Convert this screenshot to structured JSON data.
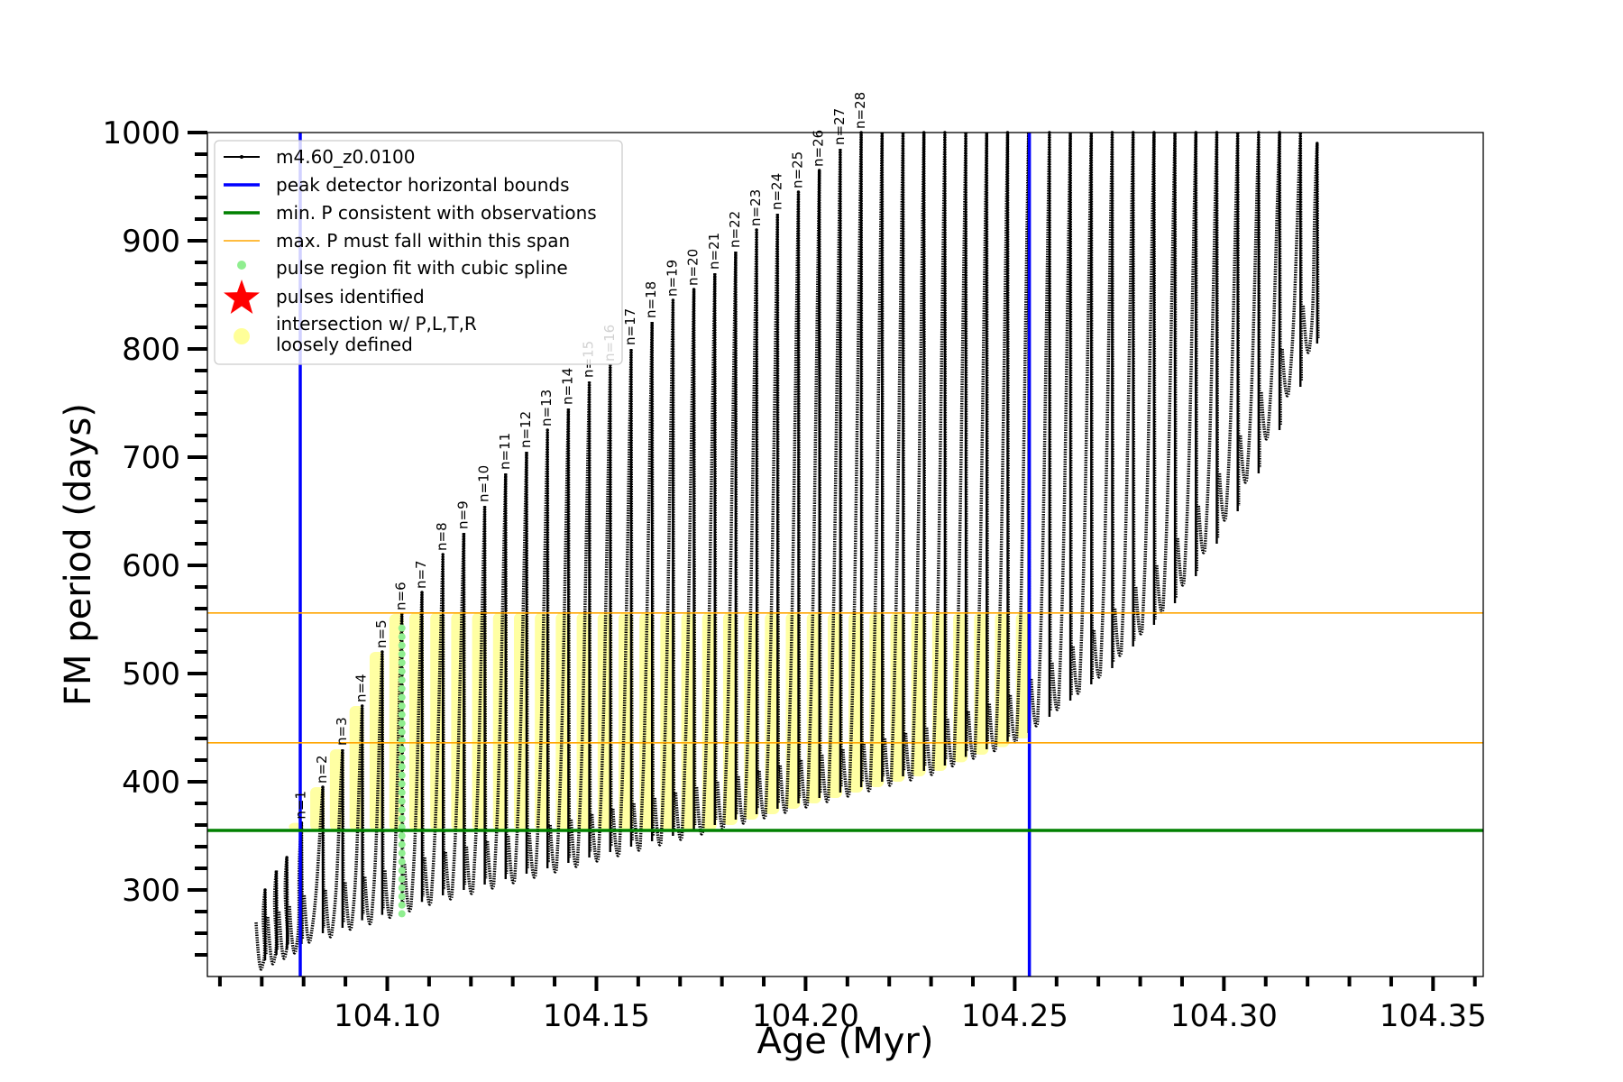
{
  "chart_data": {
    "type": "line",
    "xlabel": "Age (Myr)",
    "ylabel": "FM period (days)",
    "xlim": [
      104.057,
      104.362
    ],
    "ylim": [
      220,
      1000
    ],
    "x_ticks": [
      "104.10",
      "104.15",
      "104.20",
      "104.25",
      "104.30",
      "104.35"
    ],
    "y_ticks": [
      "300",
      "400",
      "500",
      "600",
      "700",
      "800",
      "900",
      "1000"
    ],
    "grid": false,
    "legend_position": "top-left",
    "legend": [
      {
        "key": "model",
        "label": "m4.60_z0.0100",
        "color": "#000000",
        "marker": "line-dot"
      },
      {
        "key": "bounds",
        "label": "peak detector horizontal bounds",
        "color": "#0000ff",
        "marker": "line"
      },
      {
        "key": "minp",
        "label": "min. P consistent with observations",
        "color": "#008000",
        "marker": "line"
      },
      {
        "key": "maxp",
        "label": "max. P must fall within this span",
        "color": "#ffa500",
        "marker": "thin-line"
      },
      {
        "key": "spline",
        "label": "pulse region fit with cubic spline",
        "color": "#90ee90",
        "marker": "dot"
      },
      {
        "key": "pulses",
        "label": "pulses identified",
        "color": "#ff0000",
        "marker": "star"
      },
      {
        "key": "intersect",
        "label": "intersection w/ P,L,T,R",
        "label2": "loosely defined",
        "color": "#ffff99",
        "marker": "circle"
      }
    ],
    "series": [
      {
        "name": "m4.60_z0.0100",
        "style": "pulse sawtooth (dense points)",
        "pulses": [
          {
            "age": 104.0708,
            "min": 230,
            "max": 300
          },
          {
            "age": 104.0735,
            "min": 235,
            "max": 318
          },
          {
            "age": 104.076,
            "min": 240,
            "max": 330
          },
          {
            "age": 104.0795,
            "min": 245,
            "max": 362,
            "label": "n=1"
          },
          {
            "age": 104.0846,
            "min": 255,
            "max": 395,
            "label": "n=2"
          },
          {
            "age": 104.0893,
            "min": 260,
            "max": 430,
            "label": "n=3"
          },
          {
            "age": 104.094,
            "min": 267,
            "max": 470,
            "label": "n=4"
          },
          {
            "age": 104.0988,
            "min": 272,
            "max": 520,
            "label": "n=5"
          },
          {
            "age": 104.1035,
            "min": 278,
            "max": 555,
            "label": "n=6"
          },
          {
            "age": 104.1083,
            "min": 284,
            "max": 575,
            "label": "n=7"
          },
          {
            "age": 104.1133,
            "min": 290,
            "max": 610,
            "label": "n=8"
          },
          {
            "age": 104.1183,
            "min": 295,
            "max": 630,
            "label": "n=9"
          },
          {
            "age": 104.1233,
            "min": 300,
            "max": 655,
            "label": "n=10"
          },
          {
            "age": 104.1283,
            "min": 305,
            "max": 685,
            "label": "n=11"
          },
          {
            "age": 104.1333,
            "min": 310,
            "max": 705,
            "label": "n=12"
          },
          {
            "age": 104.1383,
            "min": 315,
            "max": 725,
            "label": "n=13"
          },
          {
            "age": 104.1433,
            "min": 320,
            "max": 745,
            "label": "n=14"
          },
          {
            "age": 104.1483,
            "min": 325,
            "max": 770,
            "label": "n=15"
          },
          {
            "age": 104.1533,
            "min": 330,
            "max": 785,
            "label": "n=16"
          },
          {
            "age": 104.1583,
            "min": 335,
            "max": 800,
            "label": "n=17"
          },
          {
            "age": 104.1633,
            "min": 340,
            "max": 825,
            "label": "n=18"
          },
          {
            "age": 104.1683,
            "min": 345,
            "max": 845,
            "label": "n=19"
          },
          {
            "age": 104.1733,
            "min": 350,
            "max": 855,
            "label": "n=20"
          },
          {
            "age": 104.1783,
            "min": 355,
            "max": 870,
            "label": "n=21"
          },
          {
            "age": 104.1833,
            "min": 360,
            "max": 890,
            "label": "n=22"
          },
          {
            "age": 104.1883,
            "min": 365,
            "max": 910,
            "label": "n=23"
          },
          {
            "age": 104.1933,
            "min": 370,
            "max": 925,
            "label": "n=24"
          },
          {
            "age": 104.1983,
            "min": 375,
            "max": 945,
            "label": "n=25"
          },
          {
            "age": 104.2033,
            "min": 380,
            "max": 965,
            "label": "n=26"
          },
          {
            "age": 104.2083,
            "min": 385,
            "max": 985,
            "label": "n=27"
          },
          {
            "age": 104.2133,
            "min": 390,
            "max": 1000,
            "label": "n=28"
          },
          {
            "age": 104.2183,
            "min": 395,
            "max": 1000
          },
          {
            "age": 104.2233,
            "min": 400,
            "max": 1000
          },
          {
            "age": 104.2283,
            "min": 405,
            "max": 1000
          },
          {
            "age": 104.2333,
            "min": 410,
            "max": 1000
          },
          {
            "age": 104.2383,
            "min": 418,
            "max": 1000
          },
          {
            "age": 104.2433,
            "min": 425,
            "max": 1000
          },
          {
            "age": 104.2483,
            "min": 432,
            "max": 1000
          },
          {
            "age": 104.2533,
            "min": 440,
            "max": 1000
          },
          {
            "age": 104.2583,
            "min": 455,
            "max": 1000
          },
          {
            "age": 104.2633,
            "min": 470,
            "max": 1000
          },
          {
            "age": 104.2683,
            "min": 485,
            "max": 1000
          },
          {
            "age": 104.2733,
            "min": 500,
            "max": 1000
          },
          {
            "age": 104.2783,
            "min": 520,
            "max": 1000
          },
          {
            "age": 104.2833,
            "min": 540,
            "max": 1000
          },
          {
            "age": 104.2883,
            "min": 560,
            "max": 1000
          },
          {
            "age": 104.2933,
            "min": 585,
            "max": 1000
          },
          {
            "age": 104.2983,
            "min": 615,
            "max": 1000
          },
          {
            "age": 104.3033,
            "min": 645,
            "max": 1000
          },
          {
            "age": 104.3083,
            "min": 680,
            "max": 1000
          },
          {
            "age": 104.3133,
            "min": 720,
            "max": 1000
          },
          {
            "age": 104.3183,
            "min": 760,
            "max": 1000
          },
          {
            "age": 104.3223,
            "min": 800,
            "max": 990
          }
        ]
      },
      {
        "name": "peak detector horizontal bounds",
        "x": [
          104.0792,
          104.2535
        ]
      },
      {
        "name": "min. P consistent with observations",
        "y": 355
      },
      {
        "name": "max. P must fall within this span",
        "y": [
          436,
          556
        ]
      },
      {
        "name": "pulse region fit with cubic spline",
        "x": 104.1035,
        "y_range": [
          278,
          542
        ]
      },
      {
        "name": "intersection w/ P,L,T,R loosely defined",
        "x_range": [
          104.0795,
          104.2533
        ],
        "y_range": [
          355,
          556
        ]
      }
    ]
  }
}
